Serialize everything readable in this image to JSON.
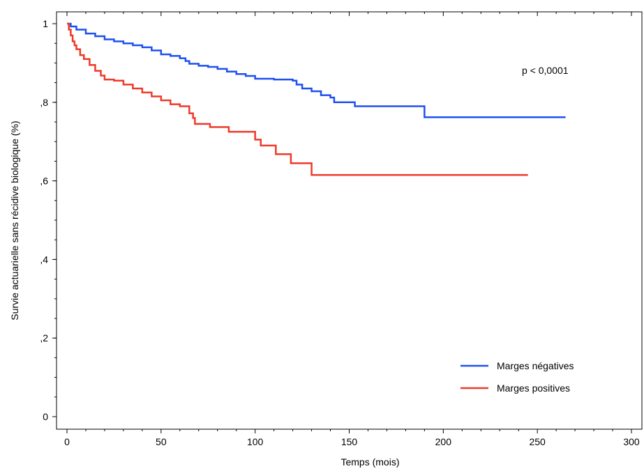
{
  "chart_data": {
    "type": "line",
    "step": true,
    "xlabel": "Temps (mois)",
    "ylabel": "Survie actuarielle sans récidive biologique (%)",
    "xlim": [
      0,
      300
    ],
    "ylim": [
      0,
      1
    ],
    "xticks": [
      {
        "value": 0,
        "label": "0"
      },
      {
        "value": 50,
        "label": "50"
      },
      {
        "value": 100,
        "label": "100"
      },
      {
        "value": 150,
        "label": "150"
      },
      {
        "value": 200,
        "label": "200"
      },
      {
        "value": 250,
        "label": "250"
      },
      {
        "value": 300,
        "label": "300"
      }
    ],
    "yticks": [
      {
        "value": 0,
        "label": "0"
      },
      {
        "value": 0.2,
        "label": ",2"
      },
      {
        "value": 0.4,
        "label": ",4"
      },
      {
        "value": 0.6,
        "label": ",6"
      },
      {
        "value": 0.8,
        "label": ",8"
      },
      {
        "value": 1,
        "label": "1"
      }
    ],
    "grid": false,
    "legend_position": "bottom-right",
    "annotation": "p < 0,0001",
    "series": [
      {
        "name": "Marges négatives",
        "color": "#1e50f0",
        "points": [
          [
            0,
            1.0
          ],
          [
            2,
            0.993
          ],
          [
            5,
            0.985
          ],
          [
            10,
            0.975
          ],
          [
            15,
            0.968
          ],
          [
            20,
            0.96
          ],
          [
            25,
            0.955
          ],
          [
            30,
            0.95
          ],
          [
            35,
            0.945
          ],
          [
            40,
            0.94
          ],
          [
            45,
            0.932
          ],
          [
            50,
            0.922
          ],
          [
            55,
            0.918
          ],
          [
            60,
            0.912
          ],
          [
            63,
            0.905
          ],
          [
            65,
            0.898
          ],
          [
            70,
            0.893
          ],
          [
            75,
            0.89
          ],
          [
            80,
            0.885
          ],
          [
            85,
            0.878
          ],
          [
            90,
            0.872
          ],
          [
            95,
            0.867
          ],
          [
            100,
            0.86
          ],
          [
            110,
            0.858
          ],
          [
            120,
            0.855
          ],
          [
            122,
            0.845
          ],
          [
            125,
            0.835
          ],
          [
            130,
            0.828
          ],
          [
            135,
            0.818
          ],
          [
            140,
            0.812
          ],
          [
            142,
            0.8
          ],
          [
            150,
            0.8
          ],
          [
            153,
            0.79
          ],
          [
            175,
            0.79
          ],
          [
            190,
            0.79
          ],
          [
            190,
            0.762
          ],
          [
            265,
            0.762
          ]
        ]
      },
      {
        "name": "Marges positives",
        "color": "#ee3a2a",
        "points": [
          [
            0,
            1.0
          ],
          [
            1,
            0.985
          ],
          [
            2,
            0.97
          ],
          [
            3,
            0.955
          ],
          [
            4,
            0.945
          ],
          [
            5,
            0.935
          ],
          [
            7,
            0.92
          ],
          [
            9,
            0.91
          ],
          [
            12,
            0.895
          ],
          [
            15,
            0.88
          ],
          [
            18,
            0.868
          ],
          [
            20,
            0.858
          ],
          [
            25,
            0.855
          ],
          [
            30,
            0.845
          ],
          [
            35,
            0.835
          ],
          [
            40,
            0.825
          ],
          [
            45,
            0.815
          ],
          [
            50,
            0.805
          ],
          [
            55,
            0.795
          ],
          [
            60,
            0.79
          ],
          [
            64,
            0.79
          ],
          [
            65,
            0.772
          ],
          [
            67,
            0.76
          ],
          [
            68,
            0.745
          ],
          [
            75,
            0.745
          ],
          [
            76,
            0.737
          ],
          [
            85,
            0.737
          ],
          [
            86,
            0.725
          ],
          [
            99,
            0.725
          ],
          [
            100,
            0.705
          ],
          [
            103,
            0.69
          ],
          [
            110,
            0.69
          ],
          [
            111,
            0.668
          ],
          [
            118,
            0.668
          ],
          [
            119,
            0.645
          ],
          [
            128,
            0.645
          ],
          [
            130,
            0.615
          ],
          [
            245,
            0.615
          ]
        ]
      }
    ]
  }
}
